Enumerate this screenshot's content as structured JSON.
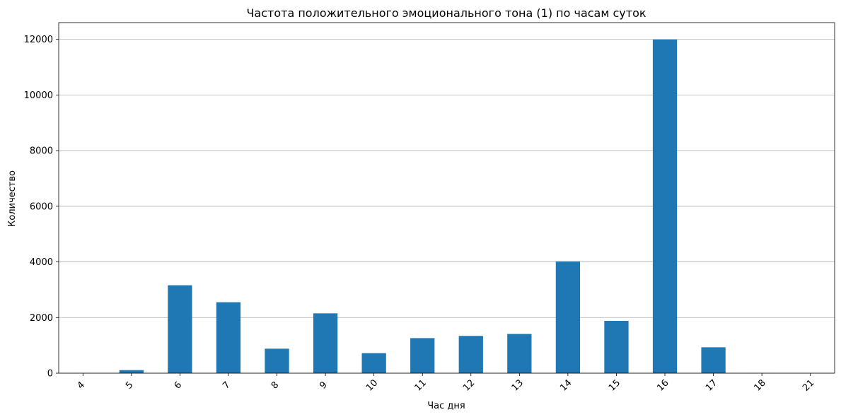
{
  "chart_data": {
    "type": "bar",
    "title": "Частота положительного эмоционального тона (1) по часам суток",
    "xlabel": "Час дня",
    "ylabel": "Количество",
    "categories": [
      "4",
      "5",
      "6",
      "7",
      "8",
      "9",
      "10",
      "11",
      "12",
      "13",
      "14",
      "15",
      "16",
      "17",
      "18",
      "21"
    ],
    "values": [
      3,
      110,
      3160,
      2550,
      880,
      2150,
      720,
      1260,
      1340,
      1410,
      4020,
      1880,
      11990,
      930,
      5,
      2
    ],
    "ylim": [
      0,
      12600
    ],
    "yticks": [
      "0",
      "2000",
      "4000",
      "6000",
      "8000",
      "10000",
      "12000"
    ],
    "grid": "y",
    "legend": "none",
    "colors": {
      "bar": "#1f77b4",
      "grid": "#b0b0b0",
      "axis": "#000000"
    }
  }
}
